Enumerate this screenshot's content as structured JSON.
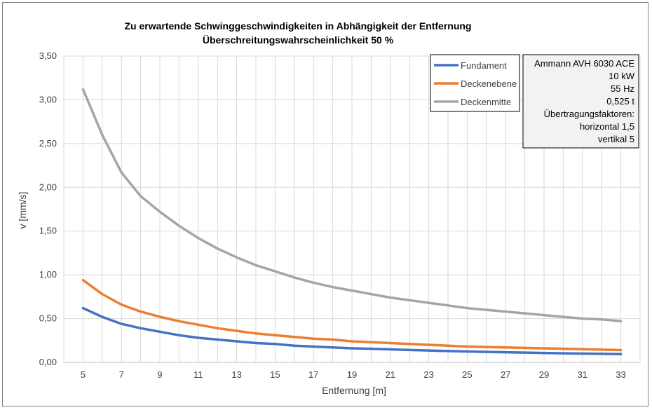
{
  "chart_data": {
    "type": "line",
    "title": "Zu erwartende Schwinggeschwindigkeiten in Abhängigkeit der Entfernung",
    "subtitle": "Überschreitungswahrscheinlichkeit 50 %",
    "xlabel": "Entfernung [m]",
    "ylabel": "v [mm/s]",
    "xlim": [
      5,
      33
    ],
    "ylim": [
      0,
      3.5
    ],
    "x_ticks": [
      "5",
      "7",
      "9",
      "11",
      "13",
      "15",
      "17",
      "19",
      "21",
      "23",
      "25",
      "27",
      "29",
      "31",
      "33"
    ],
    "y_ticks": [
      "0,00",
      "0,50",
      "1,00",
      "1,50",
      "2,00",
      "2,50",
      "3,00",
      "3,50"
    ],
    "grid": true,
    "legend_position": "top-right",
    "x": [
      5,
      6,
      7,
      8,
      9,
      10,
      11,
      12,
      13,
      14,
      15,
      16,
      17,
      18,
      19,
      20,
      21,
      22,
      23,
      24,
      25,
      26,
      27,
      28,
      29,
      30,
      31,
      32,
      33
    ],
    "series": [
      {
        "name": "Fundament",
        "color": "#4472c4",
        "values": [
          0.62,
          0.52,
          0.44,
          0.39,
          0.35,
          0.31,
          0.28,
          0.26,
          0.24,
          0.22,
          0.21,
          0.19,
          0.18,
          0.17,
          0.16,
          0.155,
          0.148,
          0.141,
          0.135,
          0.129,
          0.124,
          0.119,
          0.115,
          0.111,
          0.107,
          0.103,
          0.1,
          0.097,
          0.094
        ]
      },
      {
        "name": "Deckenebene",
        "color": "#ed7d31",
        "values": [
          0.94,
          0.78,
          0.66,
          0.58,
          0.52,
          0.47,
          0.43,
          0.39,
          0.36,
          0.33,
          0.31,
          0.29,
          0.27,
          0.26,
          0.24,
          0.23,
          0.22,
          0.21,
          0.2,
          0.19,
          0.18,
          0.175,
          0.17,
          0.165,
          0.16,
          0.155,
          0.15,
          0.145,
          0.14
        ]
      },
      {
        "name": "Deckenmitte",
        "color": "#a5a5a5",
        "values": [
          3.12,
          2.6,
          2.17,
          1.9,
          1.72,
          1.56,
          1.42,
          1.3,
          1.2,
          1.11,
          1.04,
          0.97,
          0.91,
          0.86,
          0.82,
          0.78,
          0.74,
          0.71,
          0.68,
          0.65,
          0.62,
          0.6,
          0.58,
          0.56,
          0.54,
          0.52,
          0.5,
          0.49,
          0.47
        ]
      }
    ],
    "info_box": {
      "lines": [
        "Ammann AVH 6030 ACE",
        "10 kW",
        "55 Hz",
        "0,525 t",
        "Übertragungsfaktoren:",
        "horizontal 1,5",
        "vertikal 5"
      ]
    }
  }
}
